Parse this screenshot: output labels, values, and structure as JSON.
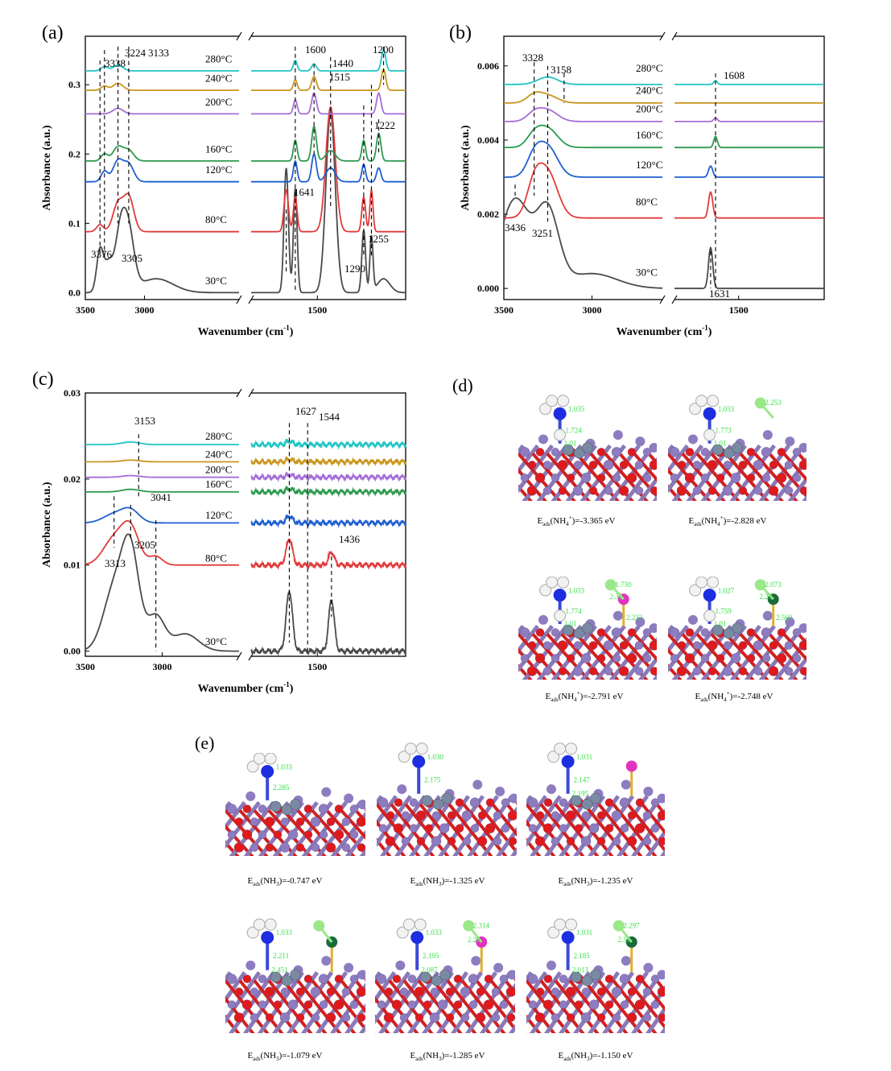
{
  "chart_data": [
    {
      "panel_label": "(a)",
      "type": "line",
      "xlabel": "Wavenumber (cm",
      "xlabel_sup": "-1",
      "xlabel_close": ")",
      "ylabel": "Absorbance (a.u.)",
      "ylim": [
        -0.01,
        0.37
      ],
      "xlim_left": [
        3500,
        2200
      ],
      "xlim_right": [
        1800,
        1100
      ],
      "xticks": [
        3500,
        3000,
        1500
      ],
      "yticks": [
        0.0,
        0.1,
        0.2,
        0.3
      ],
      "ytick_labels": [
        "0.0",
        "0.1",
        "0.2",
        "0.3"
      ],
      "series": [
        {
          "name": "30°C",
          "color": "#4a4a4a",
          "offset": 0.0,
          "label_y": 0.01,
          "peaks": [
            [
              3376,
              0.06,
              40
            ],
            [
              3305,
              0.04,
              50
            ],
            [
              3210,
              0.07,
              60
            ],
            [
              3140,
              0.09,
              70
            ],
            [
              2900,
              0.02,
              200
            ],
            [
              1641,
              0.18,
              14
            ],
            [
              1600,
              0.15,
              12
            ],
            [
              1440,
              0.26,
              30
            ],
            [
              1290,
              0.09,
              12
            ],
            [
              1255,
              0.08,
              10
            ],
            [
              1200,
              0.02,
              40
            ]
          ]
        },
        {
          "name": "80°C",
          "color": "#e23b3b",
          "offset": 0.088,
          "label_y": 0.098,
          "peaks": [
            [
              3376,
              0.01,
              40
            ],
            [
              3224,
              0.04,
              60
            ],
            [
              3133,
              0.05,
              60
            ],
            [
              1641,
              0.06,
              14
            ],
            [
              1600,
              0.05,
              12
            ],
            [
              1440,
              0.18,
              30
            ],
            [
              1290,
              0.05,
              12
            ],
            [
              1255,
              0.06,
              10
            ]
          ]
        },
        {
          "name": "120°C",
          "color": "#1f5fd0",
          "offset": 0.16,
          "label_y": 0.17,
          "peaks": [
            [
              3338,
              0.015,
              40
            ],
            [
              3224,
              0.03,
              60
            ],
            [
              3133,
              0.025,
              60
            ],
            [
              1600,
              0.03,
              12
            ],
            [
              1515,
              0.04,
              15
            ],
            [
              1440,
              0.02,
              30
            ],
            [
              1290,
              0.025,
              12
            ],
            [
              1222,
              0.02,
              14
            ]
          ]
        },
        {
          "name": "160°C",
          "color": "#2e9a4e",
          "offset": 0.19,
          "label_y": 0.2,
          "peaks": [
            [
              3338,
              0.01,
              40
            ],
            [
              3224,
              0.02,
              60
            ],
            [
              3133,
              0.015,
              60
            ],
            [
              1600,
              0.03,
              12
            ],
            [
              1515,
              0.05,
              15
            ],
            [
              1440,
              0.015,
              30
            ],
            [
              1290,
              0.03,
              12
            ],
            [
              1222,
              0.04,
              14
            ]
          ]
        },
        {
          "name": "200°C",
          "color": "#a66ed6",
          "offset": 0.258,
          "label_y": 0.268,
          "peaks": [
            [
              3224,
              0.008,
              60
            ],
            [
              1600,
              0.02,
              12
            ],
            [
              1515,
              0.03,
              15
            ],
            [
              1222,
              0.03,
              14
            ]
          ]
        },
        {
          "name": "240°C",
          "color": "#c9961e",
          "offset": 0.292,
          "label_y": 0.302,
          "peaks": [
            [
              3338,
              0.006,
              40
            ],
            [
              3224,
              0.01,
              60
            ],
            [
              1600,
              0.015,
              12
            ],
            [
              1515,
              0.02,
              15
            ],
            [
              1200,
              0.03,
              14
            ]
          ]
        },
        {
          "name": "280°C",
          "color": "#22c4c4",
          "offset": 0.32,
          "label_y": 0.33,
          "peaks": [
            [
              3338,
              0.006,
              40
            ],
            [
              3224,
              0.008,
              60
            ],
            [
              1600,
              0.015,
              12
            ],
            [
              1515,
              0.01,
              15
            ],
            [
              1200,
              0.03,
              14
            ]
          ]
        }
      ],
      "annotations": [
        {
          "text": "3338",
          "x": 3338,
          "line_top": 0.35,
          "line_bottom": 0.05
        },
        {
          "text": "3224",
          "x": 3224,
          "line_top": 0.355,
          "line_bottom": 0.1
        },
        {
          "text": "3133",
          "x": 3133,
          "line_top": 0.355,
          "line_bottom": 0.1
        },
        {
          "text": "3376",
          "x": 3376,
          "line_top": 0.335,
          "line_bottom": 0.06
        },
        {
          "text": "3305",
          "x": 3305,
          "line_top": 0.0,
          "line_bottom": 0.0
        },
        {
          "text": "1600",
          "x": 1600,
          "line_top": 0.355,
          "line_bottom": 0.0
        },
        {
          "text": "1515",
          "x": 1515,
          "line_top": 0.33,
          "line_bottom": 0.2
        },
        {
          "text": "1440",
          "x": 1440,
          "line_top": 0.34,
          "line_bottom": 0.12
        },
        {
          "text": "1200",
          "x": 1200,
          "line_top": 0.355,
          "line_bottom": 0.3
        },
        {
          "text": "1222",
          "x": 1222,
          "line_top": 0.25,
          "line_bottom": 0.2
        },
        {
          "text": "1641",
          "x": 1641,
          "line_top": 0.12,
          "line_bottom": 0.03
        },
        {
          "text": "1290",
          "x": 1290,
          "line_top": 0.27,
          "line_bottom": 0.05
        },
        {
          "text": "1255",
          "x": 1255,
          "line_top": 0.3,
          "line_bottom": 0.05
        }
      ]
    },
    {
      "panel_label": "(b)",
      "type": "line",
      "xlabel": "Wavenumber (cm",
      "xlabel_sup": "-1",
      "xlabel_close": ")",
      "ylabel": "Absorbance (a.u.)",
      "ylim": [
        -0.0003,
        0.0068
      ],
      "xlim_left": [
        3500,
        2600
      ],
      "xlim_right": [
        1800,
        1100
      ],
      "xticks": [
        3500,
        3000,
        1500
      ],
      "yticks": [
        0.0,
        0.002,
        0.004,
        0.006
      ],
      "ytick_labels": [
        "0.000",
        "0.002",
        "0.004",
        "0.006"
      ],
      "series": [
        {
          "name": "30°C",
          "color": "#4a4a4a",
          "offset": 0.0,
          "label_y": 0.0003,
          "peaks": [
            [
              3436,
              0.0024,
              120
            ],
            [
              3251,
              0.002,
              90
            ],
            [
              3000,
              0.0004,
              200
            ],
            [
              1631,
              0.0011,
              14
            ]
          ]
        },
        {
          "name": "80°C",
          "color": "#e23b3b",
          "offset": 0.0019,
          "label_y": 0.0022,
          "peaks": [
            [
              3328,
              0.0008,
              60
            ],
            [
              3251,
              0.0012,
              80
            ],
            [
              1631,
              0.0007,
              14
            ]
          ]
        },
        {
          "name": "120°C",
          "color": "#1f5fd0",
          "offset": 0.003,
          "label_y": 0.0032,
          "peaks": [
            [
              3328,
              0.0005,
              60
            ],
            [
              3251,
              0.0008,
              80
            ],
            [
              1631,
              0.0003,
              14
            ]
          ]
        },
        {
          "name": "160°C",
          "color": "#2e9a4e",
          "offset": 0.0038,
          "label_y": 0.004,
          "peaks": [
            [
              3328,
              0.0003,
              60
            ],
            [
              3251,
              0.0005,
              80
            ],
            [
              1608,
              0.0003,
              12
            ]
          ]
        },
        {
          "name": "200°C",
          "color": "#a66ed6",
          "offset": 0.0045,
          "label_y": 0.0047,
          "peaks": [
            [
              3328,
              0.0002,
              60
            ],
            [
              3251,
              0.0003,
              80
            ],
            [
              1608,
              0.0001,
              12
            ]
          ]
        },
        {
          "name": "240°C",
          "color": "#c9961e",
          "offset": 0.005,
          "label_y": 0.0052,
          "peaks": [
            [
              3328,
              0.0002,
              60
            ],
            [
              3251,
              0.0002,
              80
            ]
          ]
        },
        {
          "name": "280°C",
          "color": "#22c4c4",
          "offset": 0.0055,
          "label_y": 0.0058,
          "peaks": [
            [
              3251,
              0.0002,
              80
            ],
            [
              1608,
              0.0001,
              12
            ]
          ]
        }
      ],
      "annotations": [
        {
          "text": "3328",
          "x": 3328,
          "line_top": 0.0061,
          "line_bottom": 0.0025
        },
        {
          "text": "3158",
          "x": 3158,
          "line_top": 0.0058,
          "line_bottom": 0.005
        },
        {
          "text": "3436",
          "x": 3436,
          "line_top": 0.0028,
          "line_bottom": 0.0025
        },
        {
          "text": "3251",
          "x": 3251,
          "line_top": 0.006,
          "line_bottom": 0.0018
        },
        {
          "text": "1608",
          "x": 1608,
          "line_top": 0.0058,
          "line_bottom": 0.0
        },
        {
          "text": "1631",
          "x": 1631,
          "line_top": 0.001,
          "line_bottom": 0.0
        }
      ]
    },
    {
      "panel_label": "(c)",
      "type": "line",
      "xlabel": "Wavenumber (cm",
      "xlabel_sup": "-1",
      "xlabel_close": ")",
      "ylabel": "Absorbance (a.u.)",
      "ylim": [
        -0.0006,
        0.03
      ],
      "xlim_left": [
        3500,
        2500
      ],
      "xlim_right": [
        1800,
        1100
      ],
      "xticks": [
        3500,
        3000,
        1500
      ],
      "yticks": [
        0.0,
        0.01,
        0.02,
        0.03
      ],
      "ytick_labels": [
        "0.00",
        "0.01",
        "0.02",
        "0.03"
      ],
      "series": [
        {
          "name": "30°C",
          "color": "#4a4a4a",
          "offset": 0.0,
          "label_y": 0.0005,
          "peaks": [
            [
              3313,
              0.007,
              100
            ],
            [
              3205,
              0.011,
              80
            ],
            [
              3041,
              0.004,
              80
            ],
            [
              2850,
              0.002,
              120
            ],
            [
              1627,
              0.007,
              20
            ],
            [
              1436,
              0.006,
              18
            ]
          ]
        },
        {
          "name": "80°C",
          "color": "#e23b3b",
          "offset": 0.01,
          "label_y": 0.0102,
          "peaks": [
            [
              3313,
              0.003,
              100
            ],
            [
              3205,
              0.004,
              80
            ],
            [
              3041,
              0.001,
              60
            ],
            [
              1627,
              0.003,
              20
            ],
            [
              1436,
              0.0015,
              18
            ]
          ]
        },
        {
          "name": "120°C",
          "color": "#1f5fd0",
          "offset": 0.0149,
          "label_y": 0.0152,
          "peaks": [
            [
              3313,
              0.001,
              100
            ],
            [
              3205,
              0.0014,
              80
            ],
            [
              1627,
              0.0008,
              20
            ]
          ]
        },
        {
          "name": "160°C",
          "color": "#2e9a4e",
          "offset": 0.0185,
          "label_y": 0.0188,
          "peaks": [
            [
              3205,
              0.0003,
              80
            ],
            [
              1627,
              0.0004,
              20
            ]
          ]
        },
        {
          "name": "200°C",
          "color": "#a66ed6",
          "offset": 0.0202,
          "label_y": 0.0205,
          "peaks": [
            [
              3205,
              0.0002,
              80
            ],
            [
              1627,
              0.0003,
              20
            ]
          ]
        },
        {
          "name": "240°C",
          "color": "#c9961e",
          "offset": 0.022,
          "label_y": 0.0223,
          "peaks": [
            [
              3205,
              0.0002,
              80
            ],
            [
              1627,
              0.0003,
              20
            ]
          ]
        },
        {
          "name": "280°C",
          "color": "#22c4c4",
          "offset": 0.024,
          "label_y": 0.0244,
          "peaks": [
            [
              3205,
              0.0003,
              80
            ],
            [
              1627,
              0.0004,
              20
            ]
          ]
        }
      ],
      "annotations": [
        {
          "text": "3153",
          "x": 3153,
          "line_top": 0.0252,
          "line_bottom": 0.018
        },
        {
          "text": "3041",
          "x": 3041,
          "line_top": 0.0152,
          "line_bottom": 0.0
        },
        {
          "text": "3313",
          "x": 3313,
          "line_top": 0.018,
          "line_bottom": 0.012
        },
        {
          "text": "3205",
          "x": 3205,
          "line_top": 0.017,
          "line_bottom": 0.013
        },
        {
          "text": "1627",
          "x": 1627,
          "line_top": 0.0265,
          "line_bottom": 0.001
        },
        {
          "text": "1544",
          "x": 1544,
          "line_top": 0.0265,
          "line_bottom": 0.0
        },
        {
          "text": "1436",
          "x": 1436,
          "line_top": 0.011,
          "line_bottom": 0.004
        }
      ]
    }
  ],
  "structures_d": {
    "panel_label": "(d)",
    "items": [
      {
        "labels": [
          "1.035",
          "1.724",
          "1.01"
        ],
        "energy": "=-3.365 eV",
        "extra": "none"
      },
      {
        "labels": [
          "1.033",
          "1.773",
          "1.01",
          "2.253"
        ],
        "energy": "=-2.828 eV",
        "extra": "lightgreen"
      },
      {
        "labels": [
          "1.033",
          "1.774",
          "1.01",
          "1.730",
          "2.32",
          "2.233"
        ],
        "energy": "=-2.791 eV",
        "extra": "magenta"
      },
      {
        "labels": [
          "1.027",
          "1.759",
          "1.01",
          "2.073",
          "2.29",
          "2.560"
        ],
        "energy": "=-2.748 eV",
        "extra": "darkgreen"
      }
    ],
    "e_prefix": "E",
    "e_sub": "ads",
    "species": "(NH",
    "species_sub": "4",
    "species_sup": "+",
    "species_close": ")"
  },
  "structures_e": {
    "panel_label": "(e)",
    "items": [
      {
        "labels": [
          "1.033",
          "2.285"
        ],
        "energy": "=-0.747 eV",
        "extra": "none"
      },
      {
        "labels": [
          "1.030",
          "2.175"
        ],
        "energy": "=-1.325 eV",
        "extra": "none"
      },
      {
        "labels": [
          "1.031",
          "2.147",
          "2.195"
        ],
        "energy": "=-1.235 eV",
        "extra": "magenta"
      },
      {
        "labels": [
          "1.033",
          "2.211",
          "2.451"
        ],
        "energy": "=-1.079 eV",
        "extra": "darkgreen"
      },
      {
        "labels": [
          "1.033",
          "2.195",
          "2.087",
          "2.314",
          "2.20"
        ],
        "energy": "=-1.285 eV",
        "extra": "magenta-green"
      },
      {
        "labels": [
          "1.031",
          "2.185",
          "2.013",
          "2.297",
          "2.50"
        ],
        "energy": "=-1.150 eV",
        "extra": "darkgreen-green"
      }
    ],
    "e_prefix": "E",
    "e_sub": "ads",
    "species": "(NH",
    "species_sub": "3",
    "species_close": ")="
  }
}
